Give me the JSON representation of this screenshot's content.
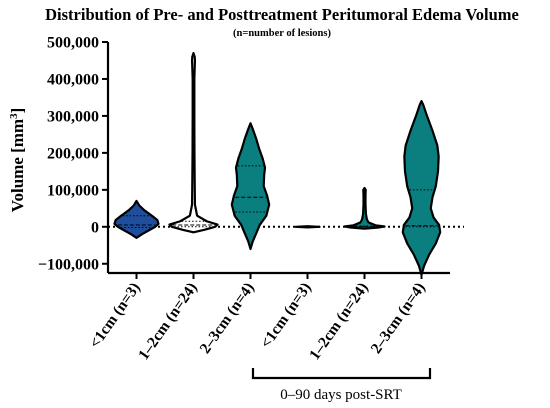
{
  "chart_data": {
    "type": "violin",
    "title": "Distribution of Pre- and Posttreatment Peritumoral Edema Volume",
    "subtitle": "(n=number of lesions)",
    "ylabel_main": "Volume [mm",
    "ylabel_sup": "3",
    "ylabel_end": "]",
    "ylim": [
      -125000,
      500000
    ],
    "yticks": [
      -100000,
      0,
      100000,
      200000,
      300000,
      400000,
      500000
    ],
    "ytick_labels": [
      "−100,000",
      "0",
      "100,000",
      "200,000",
      "300,000",
      "400,000",
      "500,000"
    ],
    "reference_line_y": 0,
    "categories": [
      "<1cm (n=3)",
      "1–2cm (n=24)",
      "2–3cm (n=4)",
      "<1cm (n=3)",
      "1–2cm (n=24)",
      "2–3cm (n=4)"
    ],
    "bracket_label": "0–90 days post-SRT",
    "bracket_groups": [
      3,
      4,
      5
    ],
    "colors": {
      "pre_small": "#1f4e9c",
      "pre_other": "#ffffff",
      "teal": "#0b7f7f",
      "outline": "#000000"
    },
    "series": [
      {
        "fill": "#1f4e9c",
        "min": -30000,
        "max": 70000,
        "median": 5000,
        "q1": -2000,
        "q3": 30000,
        "profile": [
          [
            -30000,
            0
          ],
          [
            -20000,
            0.25
          ],
          [
            -10000,
            0.55
          ],
          [
            0,
            0.85
          ],
          [
            8000,
            1.0
          ],
          [
            18000,
            0.95
          ],
          [
            30000,
            0.7
          ],
          [
            45000,
            0.35
          ],
          [
            58000,
            0.12
          ],
          [
            70000,
            0
          ]
        ],
        "maxwidth": 22
      },
      {
        "fill": "#ffffff",
        "min": -15000,
        "max": 470000,
        "median": 5000,
        "q1": 0,
        "q3": 15000,
        "profile": [
          [
            -15000,
            0
          ],
          [
            -8000,
            0.45
          ],
          [
            0,
            0.9
          ],
          [
            6000,
            1.0
          ],
          [
            15000,
            0.55
          ],
          [
            30000,
            0.15
          ],
          [
            60000,
            0.06
          ],
          [
            120000,
            0.05
          ],
          [
            200000,
            0.04
          ],
          [
            300000,
            0.035
          ],
          [
            400000,
            0.035
          ],
          [
            450000,
            0.06
          ],
          [
            460000,
            0.05
          ],
          [
            470000,
            0
          ]
        ],
        "maxwidth": 24
      },
      {
        "fill": "#0b7f7f",
        "min": -60000,
        "max": 280000,
        "median": 80000,
        "q1": 40000,
        "q3": 165000,
        "profile": [
          [
            -60000,
            0
          ],
          [
            -40000,
            0.1
          ],
          [
            -15000,
            0.28
          ],
          [
            5000,
            0.42
          ],
          [
            30000,
            0.72
          ],
          [
            60000,
            0.85
          ],
          [
            85000,
            0.75
          ],
          [
            110000,
            0.6
          ],
          [
            140000,
            0.62
          ],
          [
            160000,
            0.66
          ],
          [
            185000,
            0.55
          ],
          [
            210000,
            0.4
          ],
          [
            240000,
            0.25
          ],
          [
            265000,
            0.1
          ],
          [
            280000,
            0
          ]
        ],
        "maxwidth": 22
      },
      {
        "fill": "#0b7f7f",
        "min": -1000,
        "max": 1000,
        "median": 0,
        "q1": 0,
        "q3": 0,
        "profile": [
          [
            -1500,
            0
          ],
          [
            0,
            1.0
          ],
          [
            1500,
            0
          ]
        ],
        "maxwidth": 12
      },
      {
        "fill": "#0b7f7f",
        "min": -5000,
        "max": 105000,
        "median": 1000,
        "q1": 0,
        "q3": 2000,
        "profile": [
          [
            -5000,
            0
          ],
          [
            -2000,
            0.7
          ],
          [
            1000,
            1.0
          ],
          [
            4000,
            0.55
          ],
          [
            12000,
            0.2
          ],
          [
            20000,
            0.12
          ],
          [
            35000,
            0.07
          ],
          [
            60000,
            0.05
          ],
          [
            85000,
            0.05
          ],
          [
            100000,
            0.06
          ],
          [
            105000,
            0
          ]
        ],
        "maxwidth": 20
      },
      {
        "fill": "#0b7f7f",
        "min": -130000,
        "max": 340000,
        "median": 3000,
        "q1": 0,
        "q3": 100000,
        "profile": [
          [
            -130000,
            0
          ],
          [
            -105000,
            0.12
          ],
          [
            -75000,
            0.35
          ],
          [
            -45000,
            0.65
          ],
          [
            -15000,
            0.85
          ],
          [
            5000,
            0.8
          ],
          [
            25000,
            0.55
          ],
          [
            50000,
            0.42
          ],
          [
            80000,
            0.5
          ],
          [
            110000,
            0.65
          ],
          [
            150000,
            0.75
          ],
          [
            190000,
            0.78
          ],
          [
            220000,
            0.72
          ],
          [
            260000,
            0.5
          ],
          [
            300000,
            0.25
          ],
          [
            330000,
            0.08
          ],
          [
            340000,
            0
          ]
        ],
        "maxwidth": 22
      }
    ]
  }
}
